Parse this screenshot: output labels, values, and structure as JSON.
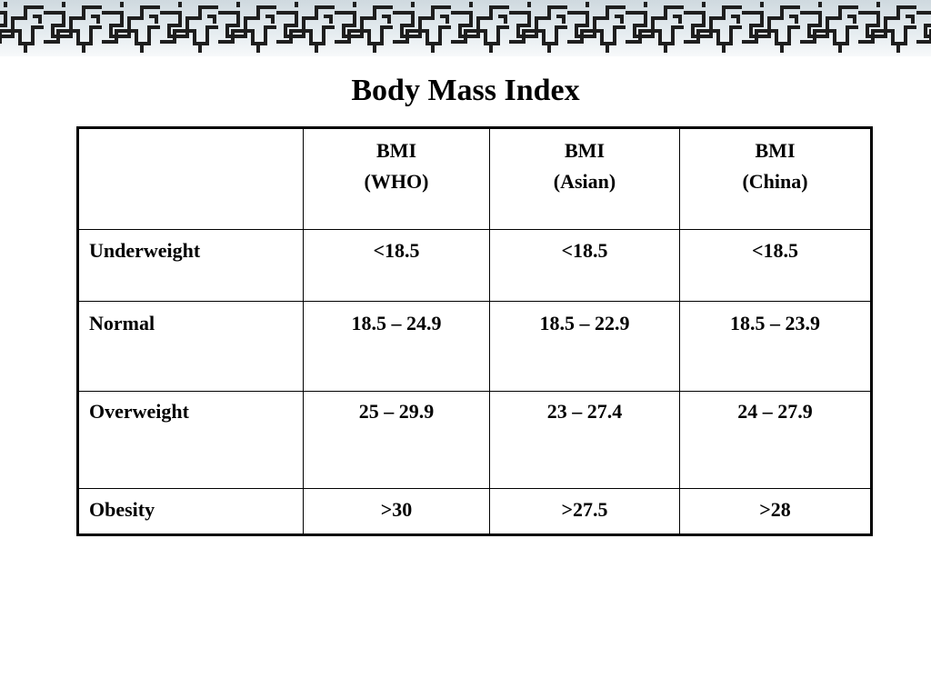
{
  "slide": {
    "title": "Body Mass Index"
  },
  "table": {
    "header": [
      {
        "line1": "",
        "line2": ""
      },
      {
        "line1": "BMI",
        "line2": "(WHO)"
      },
      {
        "line1": "BMI",
        "line2": "(Asian)"
      },
      {
        "line1": "BMI",
        "line2": "(China)"
      }
    ],
    "rows": [
      {
        "label": "Underweight",
        "values": [
          "<18.5",
          "<18.5",
          "<18.5"
        ]
      },
      {
        "label": "Normal",
        "values": [
          "18.5 – 24.9",
          "18.5 – 22.9",
          "18.5 – 23.9"
        ]
      },
      {
        "label": "Overweight",
        "values": [
          "25 – 29.9",
          "23 – 27.4",
          "24 – 27.9"
        ]
      },
      {
        "label": "Obesity",
        "values": [
          ">30",
          ">27.5",
          ">28"
        ]
      }
    ]
  },
  "colors": {
    "banner_pattern": "#1e1e1e",
    "banner_bg": "#dfe7eb",
    "text": "#000000"
  }
}
